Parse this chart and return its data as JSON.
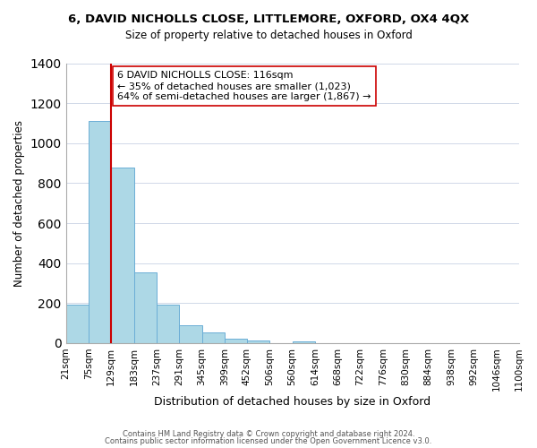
{
  "title": "6, DAVID NICHOLLS CLOSE, LITTLEMORE, OXFORD, OX4 4QX",
  "subtitle": "Size of property relative to detached houses in Oxford",
  "xlabel": "Distribution of detached houses by size in Oxford",
  "ylabel": "Number of detached properties",
  "bar_values": [
    193,
    1113,
    876,
    352,
    193,
    90,
    54,
    23,
    14,
    0,
    11,
    0,
    0,
    0,
    0,
    0,
    0,
    0,
    0,
    0
  ],
  "bin_edges": [
    21,
    75,
    129,
    183,
    237,
    291,
    345,
    399,
    452,
    506,
    560,
    614,
    668,
    722,
    776,
    830,
    884,
    938,
    992,
    1046,
    1100
  ],
  "bin_labels": [
    "21sqm",
    "75sqm",
    "129sqm",
    "183sqm",
    "237sqm",
    "291sqm",
    "345sqm",
    "399sqm",
    "452sqm",
    "506sqm",
    "560sqm",
    "614sqm",
    "668sqm",
    "722sqm",
    "776sqm",
    "830sqm",
    "884sqm",
    "938sqm",
    "992sqm",
    "1046sqm",
    "1100sqm"
  ],
  "bar_color": "#add8e6",
  "bar_edge_color": "#6baed6",
  "vline_x_index": 2,
  "vline_color": "#cc0000",
  "ylim": [
    0,
    1400
  ],
  "yticks": [
    0,
    200,
    400,
    600,
    800,
    1000,
    1200,
    1400
  ],
  "annotation_title": "6 DAVID NICHOLLS CLOSE: 116sqm",
  "annotation_line1": "← 35% of detached houses are smaller (1,023)",
  "annotation_line2": "64% of semi-detached houses are larger (1,867) →",
  "annotation_box_color": "#ffffff",
  "annotation_box_edge": "#cc0000",
  "footer1": "Contains HM Land Registry data © Crown copyright and database right 2024.",
  "footer2": "Contains public sector information licensed under the Open Government Licence v3.0.",
  "background_color": "#ffffff",
  "grid_color": "#d0d8e8"
}
